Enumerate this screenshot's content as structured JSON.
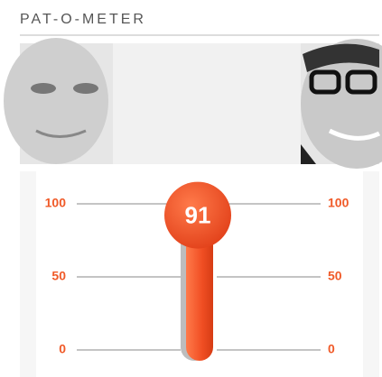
{
  "chart_data": {
    "type": "gauge",
    "title": "PAT-O-METER",
    "value": 91,
    "color": "#f04e23",
    "ylim": [
      0,
      100
    ],
    "yticks": [
      0,
      50,
      100
    ],
    "grid": true
  }
}
